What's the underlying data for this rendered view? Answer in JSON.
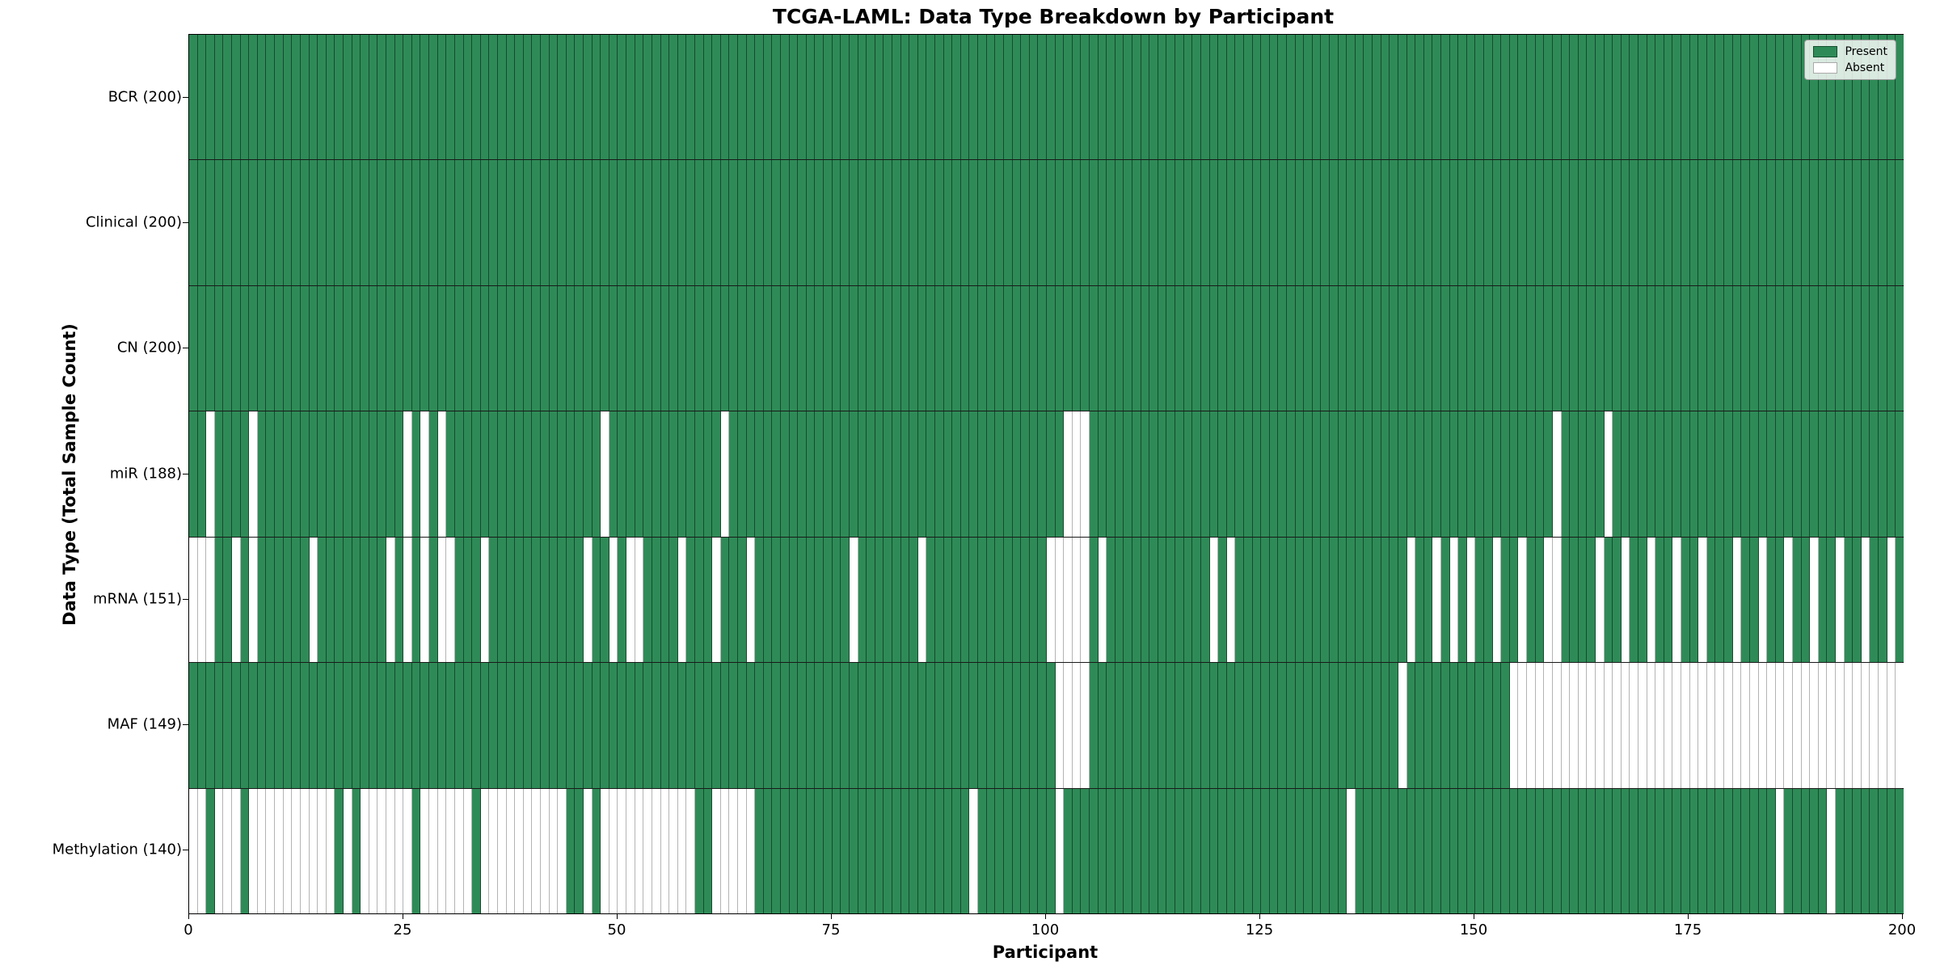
{
  "chart_data": {
    "type": "heatmap",
    "title": "TCGA-LAML: Data Type Breakdown by Participant",
    "xlabel": "Participant",
    "ylabel": "Data Type (Total Sample Count)",
    "x_range": [
      0,
      200
    ],
    "n_participants": 200,
    "x_ticks": [
      0,
      25,
      50,
      75,
      100,
      125,
      150,
      175,
      200
    ],
    "grid": "cell-edges",
    "legend_position": "upper right",
    "legend": [
      {
        "label": "Present",
        "color": "#2e8b57"
      },
      {
        "label": "Absent",
        "color": "#ffffff"
      }
    ],
    "colors": {
      "present": "#2e8b57",
      "absent": "#ffffff",
      "cell_edge_on_green": "rgba(10,40,25,0.65)",
      "cell_edge_on_white": "#b4b4b4",
      "row_separator": "#1a1a1a"
    },
    "rows": [
      {
        "label": "BCR (200)",
        "name": "BCR",
        "present_count": 200,
        "absent_participants": []
      },
      {
        "label": "Clinical (200)",
        "name": "Clinical",
        "present_count": 200,
        "absent_participants": []
      },
      {
        "label": "CN (200)",
        "name": "CN",
        "present_count": 200,
        "absent_participants": []
      },
      {
        "label": "miR (188)",
        "name": "miR",
        "present_count": 188,
        "absent_participants": [
          2,
          7,
          25,
          27,
          29,
          48,
          62,
          102,
          103,
          104,
          159,
          165
        ]
      },
      {
        "label": "mRNA (151)",
        "name": "mRNA",
        "present_count": 151,
        "absent_participants": [
          0,
          1,
          2,
          5,
          7,
          14,
          23,
          25,
          27,
          29,
          30,
          34,
          46,
          49,
          51,
          52,
          57,
          61,
          65,
          77,
          85,
          100,
          101,
          102,
          103,
          104,
          106,
          119,
          121,
          142,
          145,
          147,
          149,
          152,
          155,
          158,
          159,
          164,
          167,
          170,
          173,
          176,
          180,
          183,
          186,
          189,
          192,
          195,
          198
        ]
      },
      {
        "label": "MAF (149)",
        "name": "MAF",
        "present_count": 149,
        "absent_participants": [
          101,
          102,
          103,
          104,
          141,
          154,
          155,
          156,
          157,
          158,
          159,
          160,
          161,
          162,
          163,
          164,
          165,
          166,
          167,
          168,
          169,
          170,
          171,
          172,
          173,
          174,
          175,
          176,
          177,
          178,
          179,
          180,
          181,
          182,
          183,
          184,
          185,
          186,
          187,
          188,
          189,
          190,
          191,
          192,
          193,
          194,
          195,
          196,
          197,
          198,
          199
        ]
      },
      {
        "label": "Methylation (140)",
        "name": "Methylation",
        "present_count": 140,
        "absent_participants": [
          0,
          1,
          3,
          4,
          5,
          7,
          8,
          9,
          10,
          11,
          12,
          13,
          14,
          15,
          16,
          18,
          20,
          21,
          22,
          23,
          24,
          25,
          27,
          28,
          29,
          30,
          31,
          32,
          34,
          35,
          36,
          37,
          38,
          39,
          40,
          41,
          42,
          43,
          46,
          48,
          49,
          50,
          51,
          52,
          53,
          54,
          55,
          56,
          57,
          58,
          61,
          62,
          63,
          64,
          65,
          91,
          101,
          135,
          185,
          191
        ]
      }
    ]
  }
}
